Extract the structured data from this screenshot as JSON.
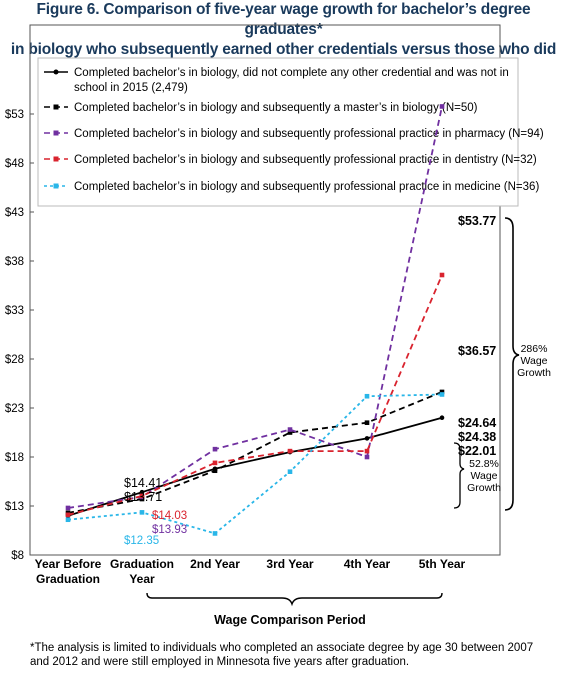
{
  "title_line1": "Figure 6. Comparison of five-year wage growth for bachelor’s degree graduates*",
  "title_line2": "in biology who subsequently earned other credentials versus those who did not.",
  "footnote_line1": "*The analysis is limited to individuals who completed an associate degree by age 30 between 2007",
  "footnote_line2": "and 2012 and were still employed in Minnesota five years after graduation.",
  "chart_data": {
    "type": "line",
    "categories": [
      "Year Before\nGraduation",
      "Graduation\nYear",
      "2nd Year",
      "3rd Year",
      "4th Year",
      "5th Year"
    ],
    "xlabel": "Wage Comparison Period",
    "ylabel": "",
    "ylim": [
      8,
      55
    ],
    "yticks": [
      8,
      13,
      18,
      23,
      28,
      33,
      38,
      43,
      48,
      53
    ],
    "ytick_labels": [
      "$8",
      "$13",
      "$18",
      "$23",
      "$28",
      "$33",
      "$38",
      "$43",
      "$48",
      "$53"
    ],
    "legend_placement": "top",
    "grid": false,
    "series": [
      {
        "name": "Completed bachelor’s in biology, did not complete any other credential and was not in school in 2015 (2,479)",
        "legend_lines": [
          "Completed bachelor’s in biology, did not complete any other credential and was not in",
          "school in 2015 (2,479)"
        ],
        "color": "#000000",
        "dash": "solid",
        "marker": "circle",
        "values": [
          12.0,
          14.41,
          16.8,
          18.5,
          19.9,
          22.01
        ]
      },
      {
        "name": "Completed bachelor’s in biology  and subsequently a master’s in biology (N=50)",
        "color": "#000000",
        "dash": "dashed",
        "marker": "square",
        "values": [
          12.3,
          13.71,
          16.6,
          20.5,
          21.5,
          24.64
        ]
      },
      {
        "name": "Completed bachelor’s in biology  and subsequently professional practice in pharmacy (N=94)",
        "color": "#7030a0",
        "dash": "dashed",
        "marker": "square",
        "values": [
          12.8,
          13.93,
          18.8,
          20.8,
          18.0,
          53.77
        ]
      },
      {
        "name": "Completed bachelor’s in biology and subsequently  professional practice in dentistry (N=32)",
        "color": "#d9232e",
        "dash": "dashed",
        "marker": "square",
        "values": [
          12.1,
          14.03,
          17.4,
          18.6,
          18.6,
          36.57
        ]
      },
      {
        "name": "Completed bachelor’s in biology and subsequently  professional practice in medicine (N=36)",
        "color": "#29b6e8",
        "dash": "dotted",
        "marker": "square",
        "values": [
          11.6,
          12.35,
          10.2,
          16.5,
          24.2,
          24.38
        ]
      }
    ],
    "annotations": {
      "grad_year_labels": [
        {
          "text": "$14.41",
          "series": 0,
          "color": "#000000"
        },
        {
          "text": "$13.71",
          "series": 1,
          "color": "#000000"
        },
        {
          "text": "$14.03",
          "series": 3,
          "color": "#d9232e"
        },
        {
          "text": "$13.93",
          "series": 2,
          "color": "#7030a0"
        },
        {
          "text": "$12.35",
          "series": 4,
          "color": "#29b6e8"
        }
      ],
      "end_labels": [
        {
          "text": "$53.77",
          "value": 53.77
        },
        {
          "text": "$36.57",
          "value": 36.57
        },
        {
          "text": "$24.64",
          "value": 24.64
        },
        {
          "text": "$24.38",
          "value": 24.38
        },
        {
          "text": "$22.01",
          "value": 22.01
        }
      ],
      "brace_large": [
        "286%",
        "Wage",
        "Growth"
      ],
      "brace_small": [
        "52.8%",
        "Wage",
        "Growth"
      ]
    }
  }
}
